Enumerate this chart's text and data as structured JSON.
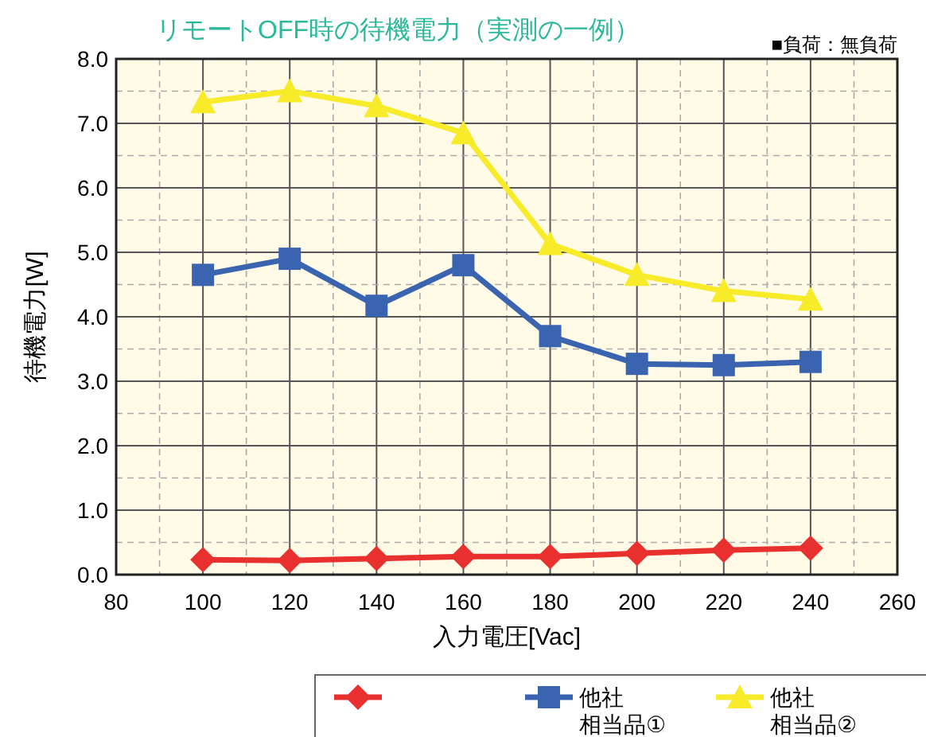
{
  "chart_data": {
    "type": "line",
    "title": "リモートOFF時の待機電力（実測の一例）",
    "subtitle": "■負荷：無負荷",
    "xlabel": "入力電圧[Vac]",
    "ylabel": "待機電力[W]",
    "x": [
      100,
      120,
      140,
      160,
      180,
      200,
      220,
      240
    ],
    "series": [
      {
        "color": "#e8312f",
        "marker": "diamond",
        "values": [
          0.23,
          0.22,
          0.25,
          0.28,
          0.28,
          0.33,
          0.38,
          0.41
        ]
      },
      {
        "name": "他社相当品①",
        "color": "#3b64b0",
        "marker": "square",
        "values": [
          4.65,
          4.9,
          4.17,
          4.8,
          3.7,
          3.27,
          3.25,
          3.3
        ]
      },
      {
        "name": "他社相当品②",
        "color": "#f7eb2a",
        "marker": "triangle",
        "values": [
          7.33,
          7.5,
          7.27,
          6.85,
          5.13,
          4.65,
          4.4,
          4.27
        ]
      }
    ],
    "xlim": [
      80,
      260
    ],
    "xticks": [
      80,
      100,
      120,
      140,
      160,
      180,
      200,
      220,
      240,
      260
    ],
    "ylim": [
      0,
      8
    ],
    "yticks": [
      {
        "value": 0,
        "label": "0.0"
      },
      {
        "value": 1,
        "label": "1.0"
      },
      {
        "value": 2,
        "label": "2.0"
      },
      {
        "value": 3,
        "label": "3.0"
      },
      {
        "value": 4,
        "label": "4.0"
      },
      {
        "value": 5,
        "label": "5.0"
      },
      {
        "value": 6,
        "label": "6.0"
      },
      {
        "value": 7,
        "label": "7.0"
      },
      {
        "value": 8,
        "label": "8.0"
      }
    ],
    "grid": true,
    "legend": "bottom",
    "line_style": "solid"
  }
}
